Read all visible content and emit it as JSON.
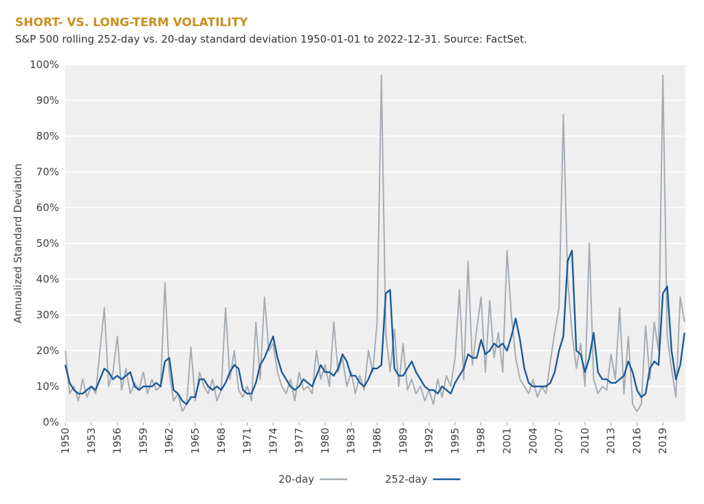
{
  "chart_data": {
    "type": "line",
    "title": "SHORT- VS. LONG-TERM VOLATILITY",
    "subtitle": "S&P 500 rolling 252-day vs. 20-day standard deviation 1950-01-01 to 2022-12-31. Source: FactSet.",
    "y_label": "Annualized Standard Deviation",
    "x": [
      1950.0,
      1950.5,
      1951.0,
      1951.5,
      1952.0,
      1952.5,
      1953.0,
      1953.5,
      1954.0,
      1954.5,
      1955.0,
      1955.5,
      1956.0,
      1956.5,
      1957.0,
      1957.5,
      1958.0,
      1958.5,
      1959.0,
      1959.5,
      1960.0,
      1960.5,
      1961.0,
      1961.5,
      1962.0,
      1962.5,
      1963.0,
      1963.5,
      1964.0,
      1964.5,
      1965.0,
      1965.5,
      1966.0,
      1966.5,
      1967.0,
      1967.5,
      1968.0,
      1968.5,
      1969.0,
      1969.5,
      1970.0,
      1970.5,
      1971.0,
      1971.5,
      1972.0,
      1972.5,
      1973.0,
      1973.5,
      1974.0,
      1974.5,
      1975.0,
      1975.5,
      1976.0,
      1976.5,
      1977.0,
      1977.5,
      1978.0,
      1978.5,
      1979.0,
      1979.5,
      1980.0,
      1980.5,
      1981.0,
      1981.5,
      1982.0,
      1982.5,
      1983.0,
      1983.5,
      1984.0,
      1984.5,
      1985.0,
      1985.5,
      1986.0,
      1986.5,
      1987.0,
      1987.5,
      1988.0,
      1988.5,
      1989.0,
      1989.5,
      1990.0,
      1990.5,
      1991.0,
      1991.5,
      1992.0,
      1992.5,
      1993.0,
      1993.5,
      1994.0,
      1994.5,
      1995.0,
      1995.5,
      1996.0,
      1996.5,
      1997.0,
      1997.5,
      1998.0,
      1998.5,
      1999.0,
      1999.5,
      2000.0,
      2000.5,
      2001.0,
      2001.5,
      2002.0,
      2002.5,
      2003.0,
      2003.5,
      2004.0,
      2004.5,
      2005.0,
      2005.5,
      2006.0,
      2006.5,
      2007.0,
      2007.5,
      2008.0,
      2008.5,
      2009.0,
      2009.5,
      2010.0,
      2010.5,
      2011.0,
      2011.5,
      2012.0,
      2012.5,
      2013.0,
      2013.5,
      2014.0,
      2014.5,
      2015.0,
      2015.5,
      2016.0,
      2016.5,
      2017.0,
      2017.5,
      2018.0,
      2018.5,
      2019.0,
      2019.5,
      2020.0,
      2020.5,
      2021.0,
      2021.5
    ],
    "series": [
      {
        "name": "20-day",
        "color": "#a5acb3",
        "values": [
          20,
          8,
          10,
          6,
          12,
          7,
          10,
          8,
          20,
          32,
          10,
          14,
          24,
          9,
          15,
          8,
          11,
          9,
          14,
          8,
          12,
          9,
          10,
          39,
          14,
          6,
          8,
          3,
          5,
          21,
          6,
          14,
          10,
          8,
          12,
          6,
          9,
          32,
          12,
          20,
          9,
          7,
          10,
          6,
          28,
          12,
          35,
          20,
          22,
          14,
          10,
          8,
          12,
          6,
          14,
          9,
          10,
          8,
          20,
          12,
          16,
          10,
          28,
          14,
          18,
          10,
          14,
          8,
          13,
          9,
          20,
          14,
          28,
          97,
          25,
          14,
          26,
          10,
          22,
          9,
          12,
          8,
          10,
          6,
          9,
          5,
          12,
          7,
          13,
          10,
          18,
          37,
          12,
          45,
          16,
          26,
          35,
          14,
          34,
          18,
          25,
          14,
          48,
          30,
          18,
          12,
          10,
          8,
          12,
          7,
          10,
          8,
          17,
          25,
          32,
          86,
          40,
          25,
          15,
          22,
          10,
          50,
          12,
          8,
          10,
          9,
          19,
          12,
          32,
          8,
          24,
          5,
          3,
          5,
          27,
          12,
          28,
          20,
          97,
          24,
          15,
          7,
          35,
          28
        ]
      },
      {
        "name": "252-day",
        "color": "#1c5a99",
        "values": [
          16,
          11,
          9,
          8,
          8,
          9,
          10,
          9,
          12,
          15,
          14,
          12,
          13,
          12,
          13,
          14,
          10,
          9,
          10,
          10,
          10,
          11,
          10,
          17,
          18,
          9,
          8,
          6,
          5,
          7,
          7,
          12,
          12,
          10,
          9,
          10,
          9,
          11,
          14,
          16,
          15,
          9,
          8,
          8,
          11,
          16,
          18,
          21,
          24,
          18,
          14,
          12,
          10,
          9,
          10,
          12,
          11,
          10,
          13,
          16,
          14,
          14,
          13,
          15,
          19,
          17,
          13,
          13,
          11,
          10,
          12,
          15,
          15,
          16,
          36,
          37,
          15,
          13,
          13,
          15,
          17,
          14,
          12,
          10,
          9,
          9,
          8,
          10,
          9,
          8,
          11,
          13,
          15,
          19,
          18,
          18,
          23,
          19,
          20,
          22,
          21,
          22,
          20,
          24,
          29,
          23,
          15,
          11,
          10,
          10,
          10,
          10,
          11,
          14,
          20,
          24,
          45,
          48,
          20,
          19,
          14,
          18,
          25,
          14,
          12,
          12,
          11,
          11,
          12,
          13,
          17,
          14,
          9,
          7,
          8,
          15,
          17,
          16,
          36,
          38,
          20,
          12,
          16,
          25
        ]
      }
    ],
    "xlim": [
      1950,
      2021.6
    ],
    "xticks": [
      1950,
      1953,
      1956,
      1959,
      1962,
      1965,
      1968,
      1971,
      1974,
      1977,
      1980,
      1983,
      1986,
      1989,
      1992,
      1995,
      1998,
      2001,
      2004,
      2007,
      2010,
      2013,
      2016,
      2019
    ],
    "ylim": [
      0,
      100
    ],
    "yticks": [
      {
        "value": 0,
        "label": "0%"
      },
      {
        "value": 10,
        "label": "10%"
      },
      {
        "value": 20,
        "label": "20%"
      },
      {
        "value": 30,
        "label": "30%"
      },
      {
        "value": 40,
        "label": "40%"
      },
      {
        "value": 50,
        "label": "50%"
      },
      {
        "value": 60,
        "label": "60%"
      },
      {
        "value": 70,
        "label": "70%"
      },
      {
        "value": 80,
        "label": "80%"
      },
      {
        "value": 90,
        "label": "90%"
      },
      {
        "value": 100,
        "label": "100%"
      }
    ],
    "grid": true,
    "legend": "bottom"
  }
}
